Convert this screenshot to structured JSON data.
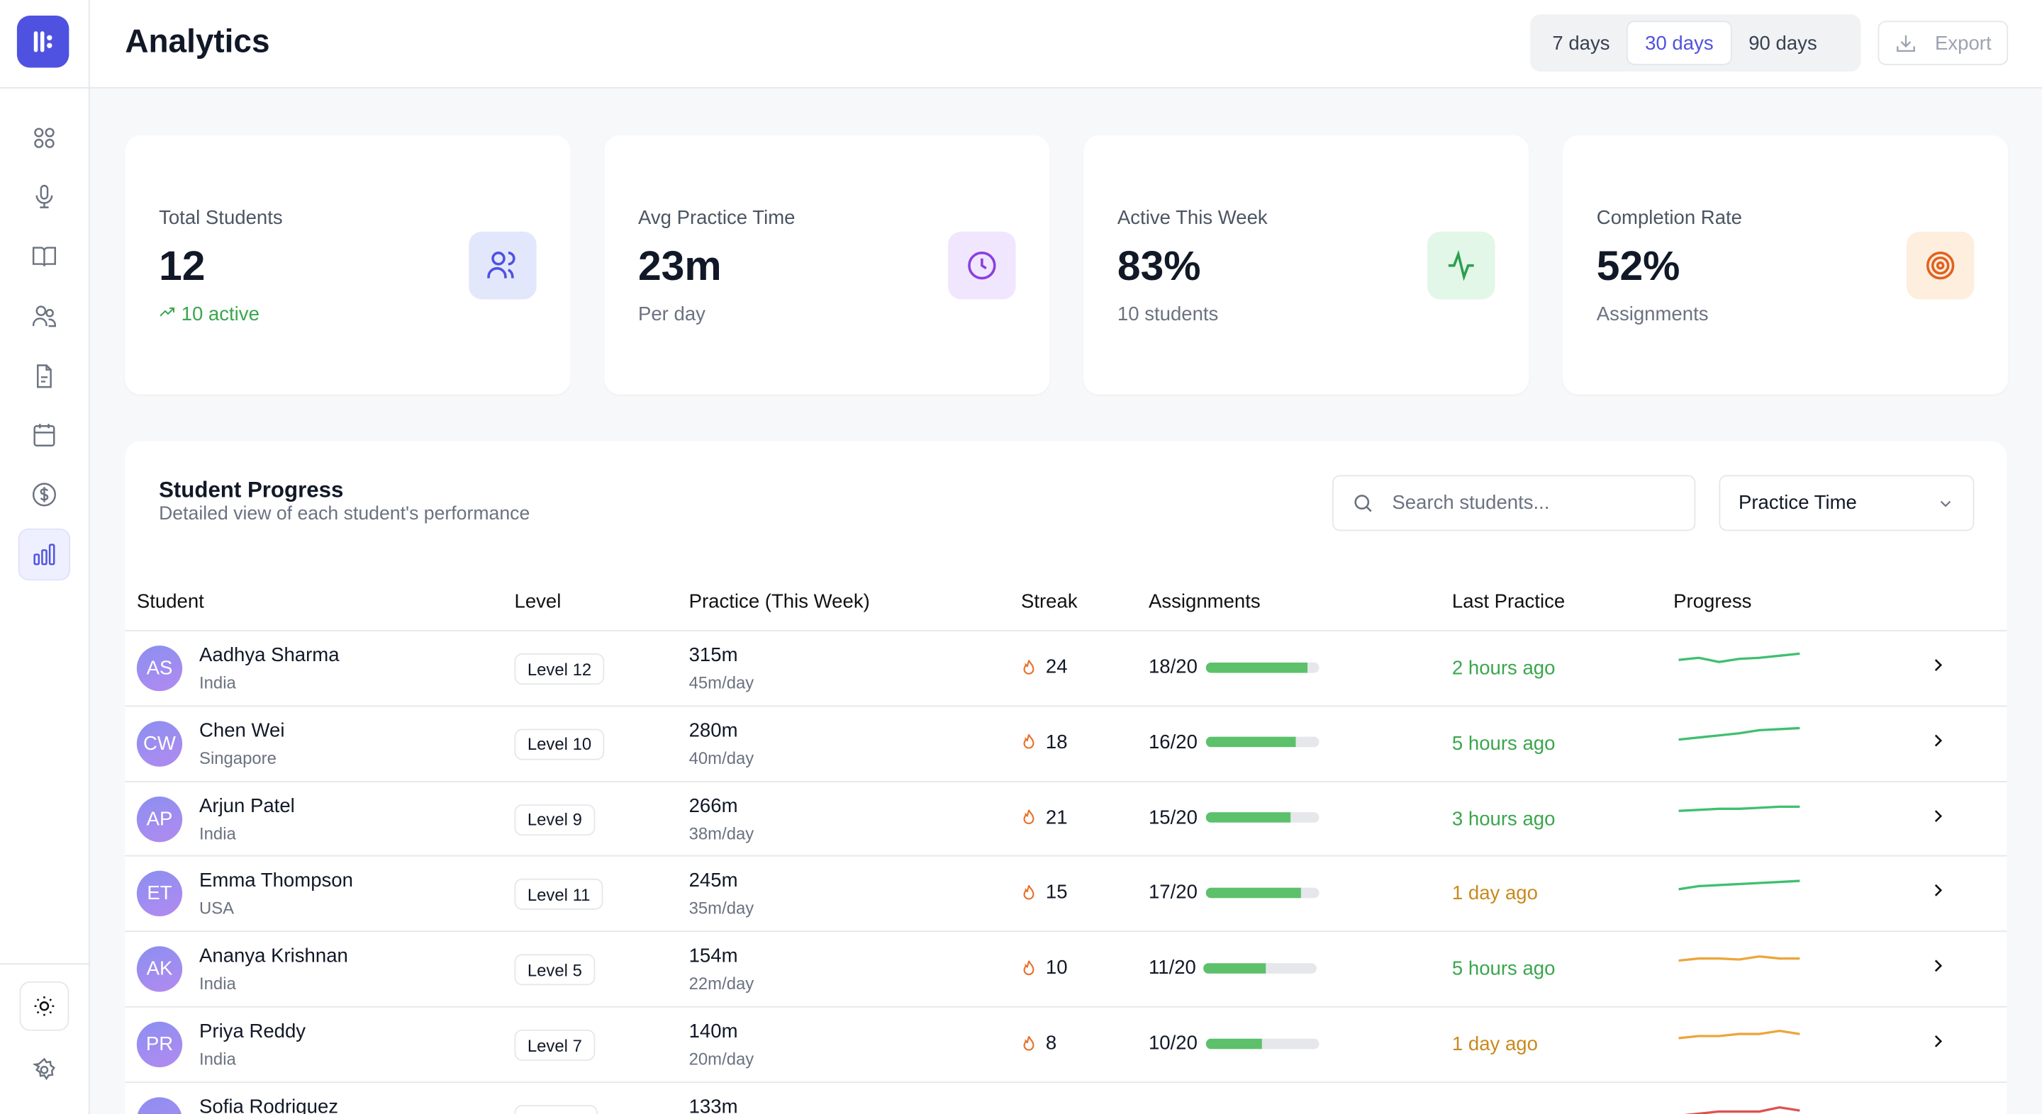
{
  "header": {
    "title": "Analytics",
    "ranges": [
      "7 days",
      "30 days",
      "90 days"
    ],
    "selected_range": "30 days",
    "export_label": "Export"
  },
  "sidebar": {
    "items": [
      "dashboard",
      "microphone",
      "book",
      "users",
      "document",
      "calendar",
      "billing",
      "analytics"
    ],
    "active": "analytics"
  },
  "stats": [
    {
      "label": "Total Students",
      "value": "12",
      "sub": "10 active",
      "icon": "users-icon",
      "color": "#4f52e0",
      "bg": "#e3e7fc"
    },
    {
      "label": "Avg Practice Time",
      "value": "23m",
      "sub": "Per day",
      "icon": "clock-icon",
      "color": "#8b3fe0",
      "bg": "#f0e6fd"
    },
    {
      "label": "Active This Week",
      "value": "83%",
      "sub": "10 students",
      "icon": "activity-icon",
      "color": "#2f9e4f",
      "bg": "#e2f7e7"
    },
    {
      "label": "Completion Rate",
      "value": "52%",
      "sub": "Assignments",
      "icon": "target-icon",
      "color": "#e0621f",
      "bg": "#fdeede"
    }
  ],
  "progress": {
    "title": "Student Progress",
    "subtitle": "Detailed view of each student's performance",
    "search_placeholder": "Search students...",
    "sort_value": "Practice Time",
    "columns": [
      "Student",
      "Level",
      "Practice (This Week)",
      "Streak",
      "Assignments",
      "Last Practice",
      "Progress"
    ],
    "rows": [
      {
        "initials": "AS",
        "name": "Aadhya Sharma",
        "country": "India",
        "level": "Level 12",
        "practice": "315m",
        "per_day": "45m/day",
        "streak": "24",
        "assignments": "18/20",
        "done": 18,
        "total": 20,
        "last": "2 hours ago",
        "last_color": "#3aa64d",
        "trend_color": "#3fbf70"
      },
      {
        "initials": "CW",
        "name": "Chen Wei",
        "country": "Singapore",
        "level": "Level 10",
        "practice": "280m",
        "per_day": "40m/day",
        "streak": "18",
        "assignments": "16/20",
        "done": 16,
        "total": 20,
        "last": "5 hours ago",
        "last_color": "#3aa64d",
        "trend_color": "#3fbf70"
      },
      {
        "initials": "AP",
        "name": "Arjun Patel",
        "country": "India",
        "level": "Level 9",
        "practice": "266m",
        "per_day": "38m/day",
        "streak": "21",
        "assignments": "15/20",
        "done": 15,
        "total": 20,
        "last": "3 hours ago",
        "last_color": "#3aa64d",
        "trend_color": "#3fbf70"
      },
      {
        "initials": "ET",
        "name": "Emma Thompson",
        "country": "USA",
        "level": "Level 11",
        "practice": "245m",
        "per_day": "35m/day",
        "streak": "15",
        "assignments": "17/20",
        "done": 17,
        "total": 20,
        "last": "1 day ago",
        "last_color": "#c98a1e",
        "trend_color": "#3fbf70"
      },
      {
        "initials": "AK",
        "name": "Ananya Krishnan",
        "country": "India",
        "level": "Level 5",
        "practice": "154m",
        "per_day": "22m/day",
        "streak": "10",
        "assignments": "11/20",
        "done": 11,
        "total": 20,
        "last": "5 hours ago",
        "last_color": "#3aa64d",
        "trend_color": "#eca63a"
      },
      {
        "initials": "PR",
        "name": "Priya Reddy",
        "country": "India",
        "level": "Level 7",
        "practice": "140m",
        "per_day": "20m/day",
        "streak": "8",
        "assignments": "10/20",
        "done": 10,
        "total": 20,
        "last": "1 day ago",
        "last_color": "#c98a1e",
        "trend_color": "#eca63a"
      },
      {
        "name": "Sofia Rodriguez",
        "practice": "133m",
        "trend_color": "#e05050"
      }
    ]
  }
}
